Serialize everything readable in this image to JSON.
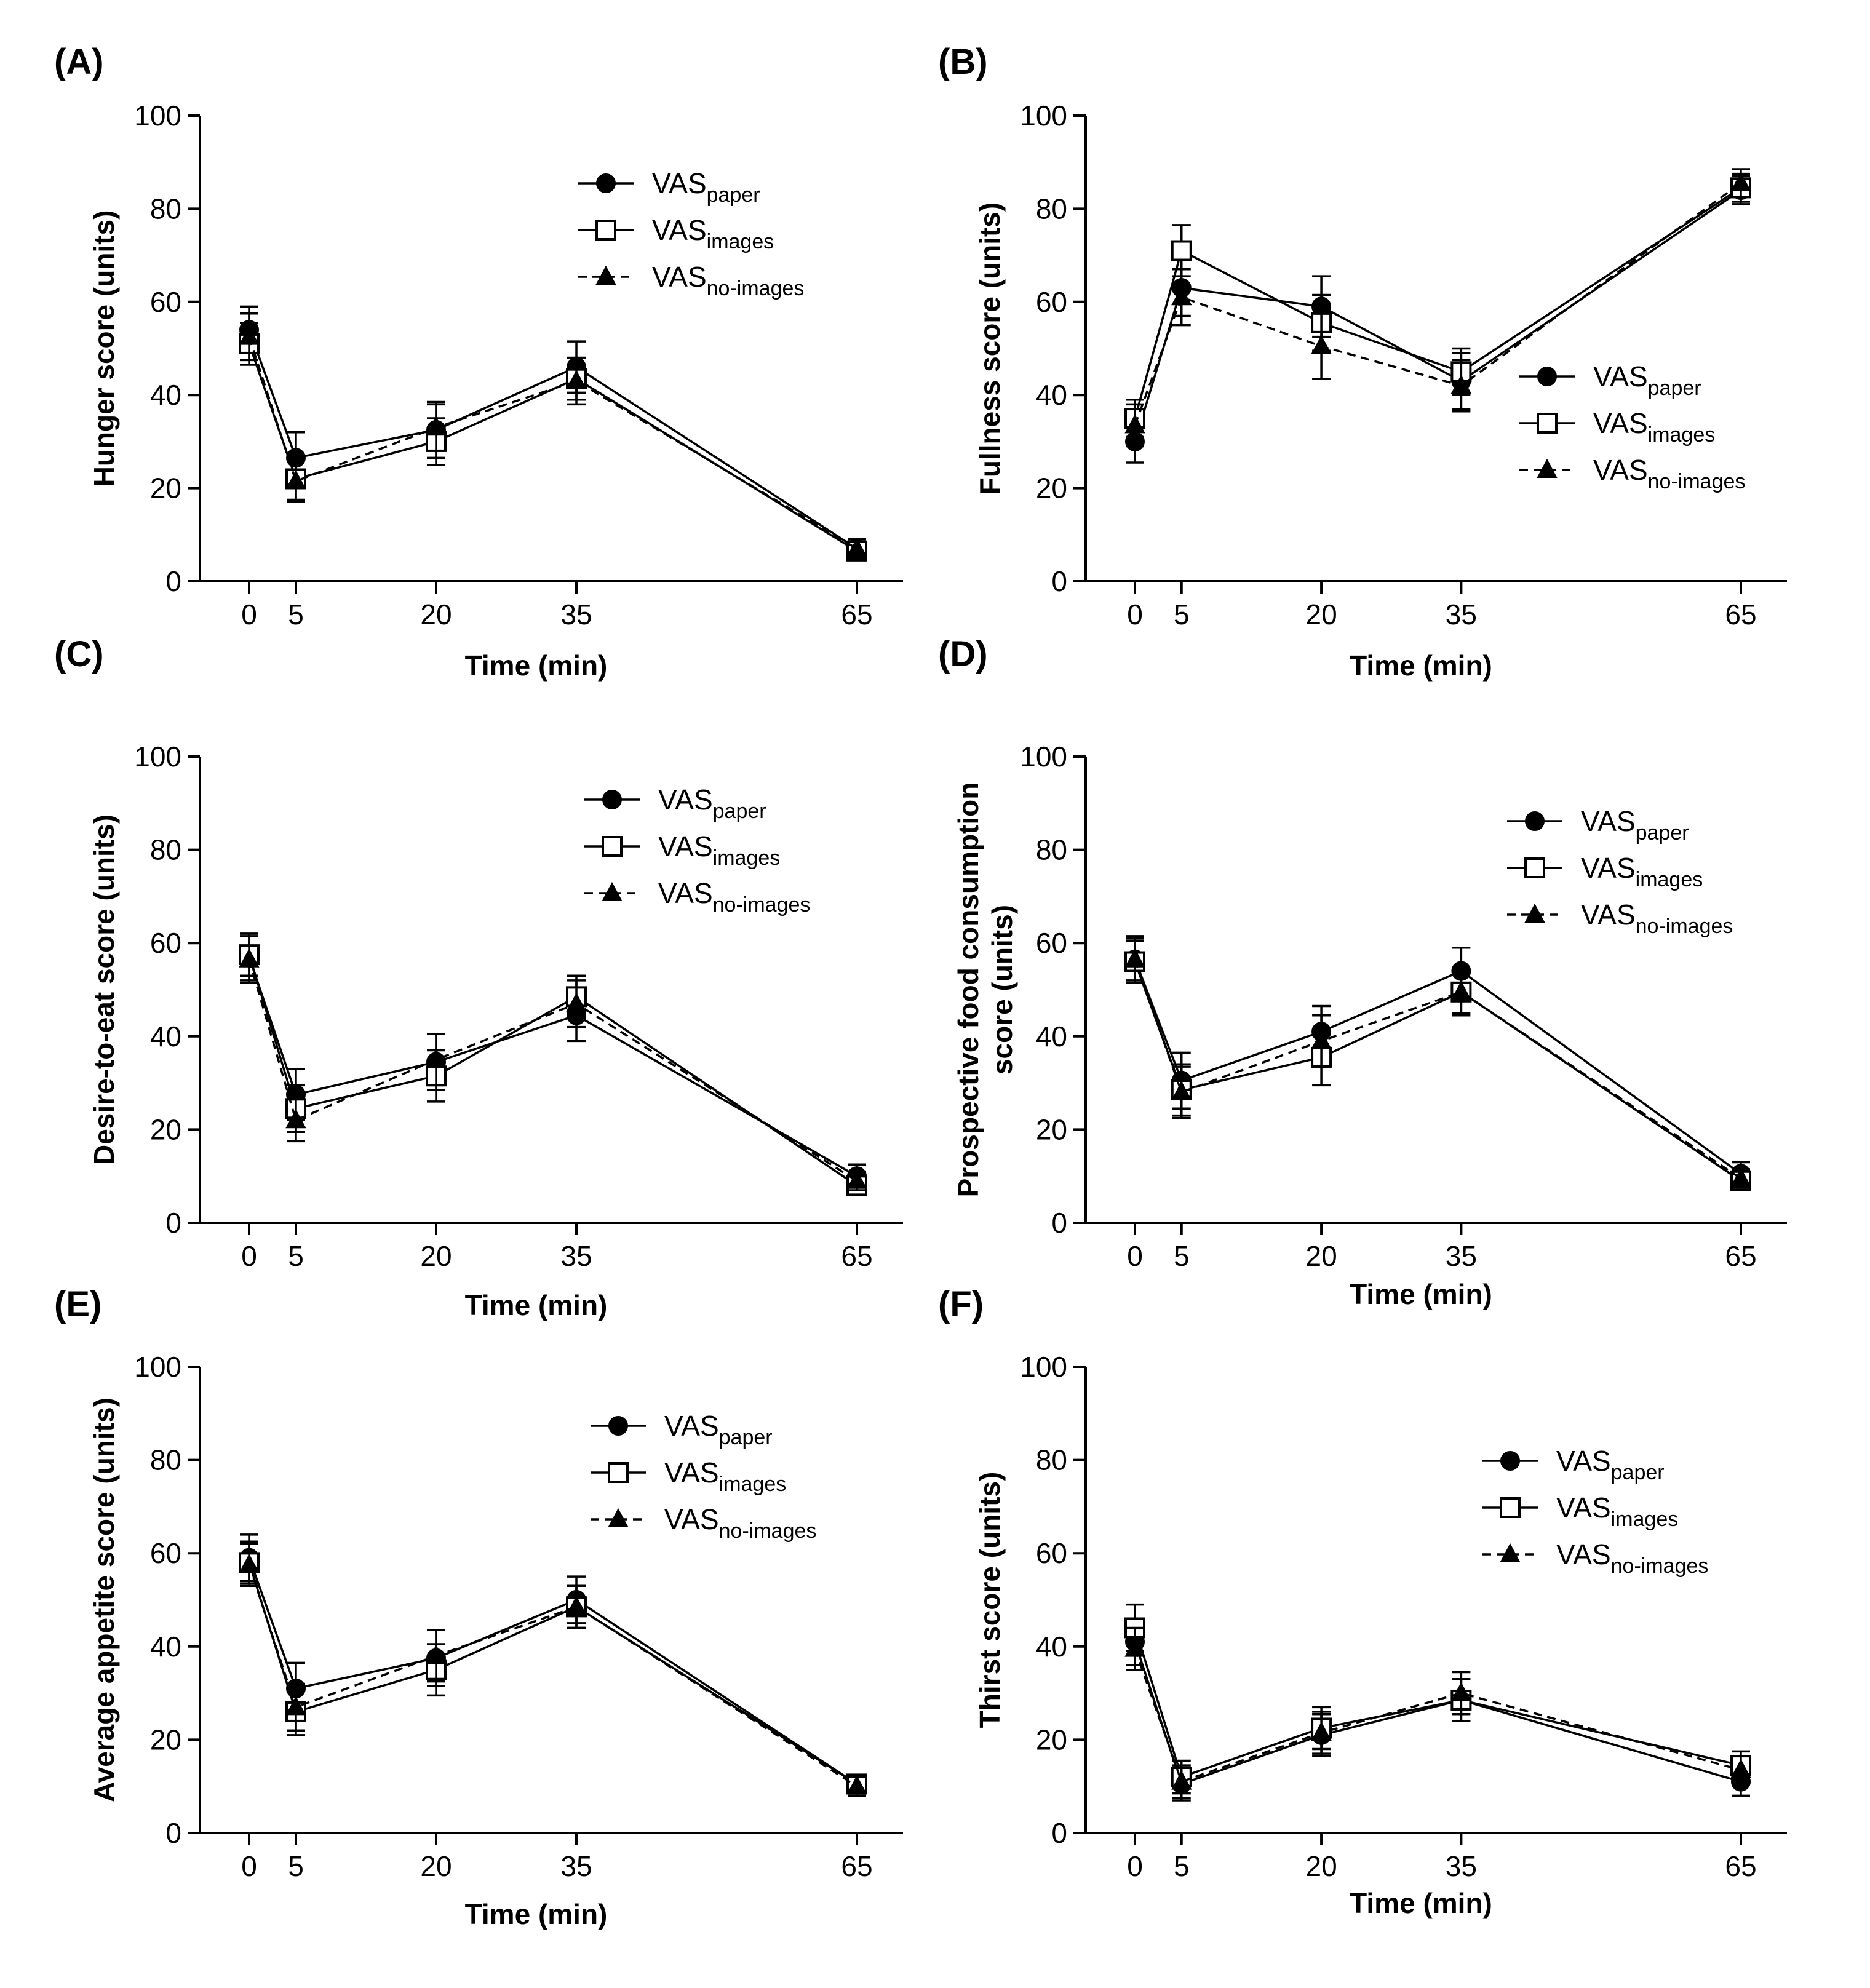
{
  "chart_data": [
    {
      "type": "line",
      "panel_label": "(A)",
      "xlabel": "Time (min)",
      "ylabel": [
        "Hunger score (units)"
      ],
      "x": [
        0,
        5,
        20,
        35,
        65
      ],
      "xticks": [
        "0",
        "5",
        "20",
        "35",
        "65"
      ],
      "ylim": [
        0,
        100
      ],
      "yticks": [
        "0",
        "20",
        "40",
        "60",
        "80",
        "100"
      ],
      "legend_position": "top-right",
      "series": [
        {
          "name": "VASpaper",
          "base": "VAS",
          "sub": "paper",
          "marker": "circle",
          "dash": "solid",
          "values": [
            54,
            26.5,
            32.5,
            46,
            7
          ],
          "errors": [
            5,
            5.5,
            6,
            5.5,
            2
          ]
        },
        {
          "name": "VASimages",
          "base": "VAS",
          "sub": "images",
          "marker": "square",
          "dash": "solid",
          "values": [
            51,
            22,
            30,
            43.5,
            6.5
          ],
          "errors": [
            4.5,
            4.5,
            5,
            4.5,
            2
          ]
        },
        {
          "name": "VASno-images",
          "base": "VAS",
          "sub": "no-images",
          "marker": "triangle",
          "dash": "dashed",
          "values": [
            52.5,
            21.5,
            33,
            43,
            7
          ],
          "errors": [
            5,
            4.5,
            5,
            5,
            2
          ]
        }
      ]
    },
    {
      "type": "line",
      "panel_label": "(B)",
      "xlabel": "Time (min)",
      "ylabel": [
        "Fullness score (units)"
      ],
      "x": [
        0,
        5,
        20,
        35,
        65
      ],
      "xticks": [
        "0",
        "5",
        "20",
        "35",
        "65"
      ],
      "ylim": [
        0,
        100
      ],
      "yticks": [
        "0",
        "20",
        "40",
        "60",
        "80",
        "100"
      ],
      "legend_position": "center-right",
      "series": [
        {
          "name": "VASpaper",
          "base": "VAS",
          "sub": "paper",
          "marker": "circle",
          "dash": "solid",
          "values": [
            30,
            63,
            59,
            43,
            84
          ],
          "errors": [
            4.5,
            6,
            6.5,
            6,
            3
          ]
        },
        {
          "name": "VASimages",
          "base": "VAS",
          "sub": "images",
          "marker": "square",
          "dash": "solid",
          "values": [
            35,
            71,
            55.5,
            45,
            84.5
          ],
          "errors": [
            4,
            5.5,
            6,
            5,
            3
          ]
        },
        {
          "name": "VASno-images",
          "base": "VAS",
          "sub": "no-images",
          "marker": "triangle",
          "dash": "dashed",
          "values": [
            33.5,
            61,
            50.5,
            42,
            85.5
          ],
          "errors": [
            4.5,
            6,
            7,
            5.5,
            3
          ]
        }
      ]
    },
    {
      "type": "line",
      "panel_label": "(C)",
      "xlabel": "Time (min)",
      "ylabel": [
        "Desire-to-eat score (units)"
      ],
      "x": [
        0,
        5,
        20,
        35,
        65
      ],
      "xticks": [
        "0",
        "5",
        "20",
        "35",
        "65"
      ],
      "ylim": [
        0,
        100
      ],
      "yticks": [
        "0",
        "20",
        "40",
        "60",
        "80",
        "100"
      ],
      "legend_position": "top-right",
      "series": [
        {
          "name": "VASpaper",
          "base": "VAS",
          "sub": "paper",
          "marker": "circle",
          "dash": "solid",
          "values": [
            57,
            27.5,
            34.5,
            44.5,
            10
          ],
          "errors": [
            5,
            5.5,
            6,
            5.5,
            2.5
          ]
        },
        {
          "name": "VASimages",
          "base": "VAS",
          "sub": "images",
          "marker": "square",
          "dash": "solid",
          "values": [
            57.5,
            24.5,
            31.5,
            48.5,
            8
          ],
          "errors": [
            4.5,
            5,
            5.5,
            4.5,
            2
          ]
        },
        {
          "name": "VASno-images",
          "base": "VAS",
          "sub": "no-images",
          "marker": "triangle",
          "dash": "dashed",
          "values": [
            56.5,
            22,
            35,
            47,
            9
          ],
          "errors": [
            5,
            4.5,
            5.5,
            5,
            2
          ]
        }
      ]
    },
    {
      "type": "line",
      "panel_label": "(D)",
      "xlabel": "Time (min)",
      "ylabel": [
        "Prospective food consumption",
        "score (units)"
      ],
      "x": [
        0,
        5,
        20,
        35,
        65
      ],
      "xticks": [
        "0",
        "5",
        "20",
        "35",
        "65"
      ],
      "ylim": [
        0,
        100
      ],
      "yticks": [
        "0",
        "20",
        "40",
        "60",
        "80",
        "100"
      ],
      "legend_position": "top-right",
      "series": [
        {
          "name": "VASpaper",
          "base": "VAS",
          "sub": "paper",
          "marker": "circle",
          "dash": "solid",
          "values": [
            56.5,
            30.5,
            41,
            54,
            10.5
          ],
          "errors": [
            5,
            6,
            5.5,
            5,
            2.5
          ]
        },
        {
          "name": "VASimages",
          "base": "VAS",
          "sub": "images",
          "marker": "square",
          "dash": "solid",
          "values": [
            56,
            28.5,
            35.5,
            49.5,
            9
          ],
          "errors": [
            4.5,
            5.5,
            6,
            4.5,
            2
          ]
        },
        {
          "name": "VASno-images",
          "base": "VAS",
          "sub": "no-images",
          "marker": "triangle",
          "dash": "dashed",
          "values": [
            56.5,
            28,
            39,
            49.5,
            9.5
          ],
          "errors": [
            4.5,
            5.5,
            5.5,
            5,
            2
          ]
        }
      ]
    },
    {
      "type": "line",
      "panel_label": "(E)",
      "xlabel": "Time (min)",
      "ylabel": [
        "Average appetite score (units)"
      ],
      "x": [
        0,
        5,
        20,
        35,
        65
      ],
      "xticks": [
        "0",
        "5",
        "20",
        "35",
        "65"
      ],
      "ylim": [
        0,
        100
      ],
      "yticks": [
        "0",
        "20",
        "40",
        "60",
        "80",
        "100"
      ],
      "legend_position": "top-right",
      "series": [
        {
          "name": "VASpaper",
          "base": "VAS",
          "sub": "paper",
          "marker": "circle",
          "dash": "solid",
          "values": [
            59,
            31,
            37.5,
            50,
            10.5
          ],
          "errors": [
            5,
            5.5,
            6,
            5,
            2
          ]
        },
        {
          "name": "VASimages",
          "base": "VAS",
          "sub": "images",
          "marker": "square",
          "dash": "solid",
          "values": [
            58,
            26,
            35,
            48.5,
            10.5
          ],
          "errors": [
            4.5,
            5,
            5.5,
            4.5,
            2
          ]
        },
        {
          "name": "VASno-images",
          "base": "VAS",
          "sub": "no-images",
          "marker": "triangle",
          "dash": "dashed",
          "values": [
            57.5,
            27,
            38,
            48.5,
            10
          ],
          "errors": [
            4.5,
            5,
            5.5,
            4.5,
            2
          ]
        }
      ]
    },
    {
      "type": "line",
      "panel_label": "(F)",
      "xlabel": "Time (min)",
      "ylabel": [
        "Thirst score (units)"
      ],
      "x": [
        0,
        5,
        20,
        35,
        65
      ],
      "xticks": [
        "0",
        "5",
        "20",
        "35",
        "65"
      ],
      "ylim": [
        0,
        100
      ],
      "yticks": [
        "0",
        "20",
        "40",
        "60",
        "80",
        "100"
      ],
      "legend_position": "top-right",
      "series": [
        {
          "name": "VASpaper",
          "base": "VAS",
          "sub": "paper",
          "marker": "circle",
          "dash": "solid",
          "values": [
            41,
            10.5,
            21,
            28.5,
            11
          ],
          "errors": [
            5,
            3.5,
            4.5,
            4.5,
            3
          ]
        },
        {
          "name": "VASimages",
          "base": "VAS",
          "sub": "images",
          "marker": "square",
          "dash": "solid",
          "values": [
            44,
            12,
            22.5,
            28.5,
            14.5
          ],
          "errors": [
            5,
            3.5,
            4.5,
            4.5,
            3
          ]
        },
        {
          "name": "VASno-images",
          "base": "VAS",
          "sub": "no-images",
          "marker": "triangle",
          "dash": "dashed",
          "values": [
            39.5,
            11,
            21.5,
            30,
            13.5
          ],
          "errors": [
            4.5,
            3.5,
            4.5,
            4.5,
            3
          ]
        }
      ]
    }
  ]
}
